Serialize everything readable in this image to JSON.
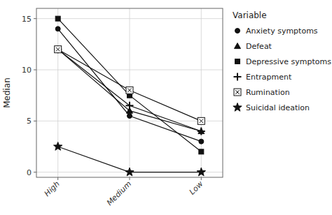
{
  "chart_data": {
    "type": "line",
    "categories": [
      "High",
      "Medium",
      "Low"
    ],
    "series": [
      {
        "name": "Anxiety symptoms",
        "color": "#111111",
        "marker": "circle",
        "values": [
          14,
          5.5,
          3
        ]
      },
      {
        "name": "Defeat",
        "color": "#111111",
        "marker": "triangle",
        "values": [
          12,
          6,
          4
        ]
      },
      {
        "name": "Depressive symptoms",
        "color": "#111111",
        "marker": "square",
        "values": [
          15,
          7.5,
          2
        ]
      },
      {
        "name": "Entrapment",
        "color": "#111111",
        "marker": "plus",
        "values": [
          12,
          6.5,
          4
        ]
      },
      {
        "name": "Rumination",
        "color": "#111111",
        "marker": "square-x",
        "values": [
          12,
          8,
          5
        ]
      },
      {
        "name": "Suicidal ideation",
        "color": "#111111",
        "marker": "star",
        "values": [
          2.5,
          0,
          0
        ]
      }
    ],
    "ylabel": "Median",
    "legend_title": "Variable",
    "ylim": [
      -0.5,
      16
    ],
    "yticks": [
      0,
      5,
      10,
      15
    ],
    "grid": true,
    "legend": "right"
  }
}
